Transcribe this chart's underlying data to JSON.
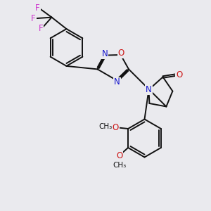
{
  "background_color": "#eaeaee",
  "bond_color": "#111111",
  "bond_width": 1.4,
  "atom_colors": {
    "C": "#111111",
    "N": "#1515cc",
    "O": "#cc1515",
    "F": "#cc33cc"
  },
  "font_size": 8.5,
  "font_size_ome": 7.5
}
